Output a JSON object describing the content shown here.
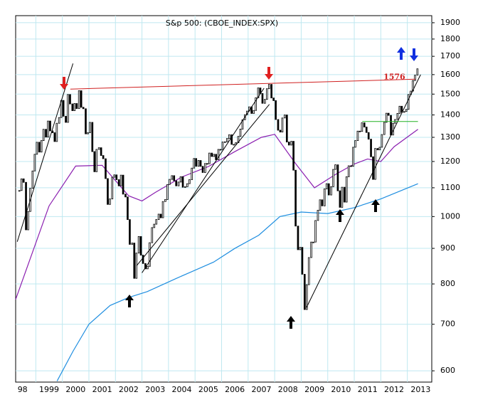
{
  "chart_data": {
    "type": "candlestick",
    "title": "S&p 500: (CBOE_INDEX:SPX)",
    "log_scale": true,
    "grid": true,
    "xlim": [
      1998.24,
      2013.92
    ],
    "ylim": [
      578,
      1945
    ],
    "xticks": [
      {
        "value": 1998,
        "label": "98"
      },
      1999,
      2000,
      2001,
      2002,
      2003,
      2004,
      2005,
      2006,
      2007,
      2008,
      2009,
      2010,
      2011,
      2012,
      2013
    ],
    "yticks": [
      600,
      700,
      800,
      900,
      1000,
      1100,
      1200,
      1300,
      1400,
      1500,
      1600,
      1700,
      1800,
      1900
    ],
    "up_color": "#ffffff",
    "down_color": "#000000",
    "x": [
      1998.38,
      1998.46,
      1998.54,
      1998.63,
      1998.71,
      1998.79,
      1998.88,
      1998.96,
      1999.04,
      1999.13,
      1999.21,
      1999.29,
      1999.38,
      1999.46,
      1999.54,
      1999.63,
      1999.71,
      1999.79,
      1999.88,
      1999.96,
      2000.04,
      2000.13,
      2000.21,
      2000.29,
      2000.38,
      2000.46,
      2000.54,
      2000.63,
      2000.71,
      2000.79,
      2000.88,
      2000.96,
      2001.04,
      2001.13,
      2001.21,
      2001.29,
      2001.38,
      2001.46,
      2001.54,
      2001.63,
      2001.71,
      2001.79,
      2001.88,
      2001.96,
      2002.04,
      2002.13,
      2002.21,
      2002.29,
      2002.38,
      2002.46,
      2002.54,
      2002.63,
      2002.71,
      2002.79,
      2002.88,
      2002.96,
      2003.04,
      2003.13,
      2003.21,
      2003.29,
      2003.38,
      2003.46,
      2003.54,
      2003.63,
      2003.71,
      2003.79,
      2003.88,
      2003.96,
      2004.04,
      2004.13,
      2004.21,
      2004.29,
      2004.38,
      2004.46,
      2004.54,
      2004.63,
      2004.71,
      2004.79,
      2004.88,
      2004.96,
      2005.04,
      2005.13,
      2005.21,
      2005.29,
      2005.38,
      2005.46,
      2005.54,
      2005.63,
      2005.71,
      2005.79,
      2005.88,
      2005.96,
      2006.04,
      2006.13,
      2006.21,
      2006.29,
      2006.38,
      2006.46,
      2006.54,
      2006.63,
      2006.71,
      2006.79,
      2006.88,
      2006.96,
      2007.04,
      2007.13,
      2007.21,
      2007.29,
      2007.38,
      2007.46,
      2007.54,
      2007.63,
      2007.71,
      2007.79,
      2007.88,
      2007.96,
      2008.04,
      2008.13,
      2008.21,
      2008.29,
      2008.38,
      2008.46,
      2008.54,
      2008.63,
      2008.71,
      2008.79,
      2008.88,
      2008.96,
      2009.04,
      2009.13,
      2009.21,
      2009.29,
      2009.38,
      2009.46,
      2009.54,
      2009.63,
      2009.71,
      2009.79,
      2009.88,
      2009.96,
      2010.04,
      2010.13,
      2010.21,
      2010.29,
      2010.38,
      2010.46,
      2010.54,
      2010.63,
      2010.71,
      2010.79,
      2010.88,
      2010.96,
      2011.04,
      2011.13,
      2011.21,
      2011.29,
      2011.38,
      2011.46,
      2011.54,
      2011.63,
      2011.71,
      2011.79,
      2011.88,
      2011.96,
      2012.04,
      2012.13,
      2012.21,
      2012.29,
      2012.38,
      2012.46,
      2012.54,
      2012.63,
      2012.71,
      2012.79,
      2012.88,
      2012.96,
      2013.04,
      2013.13,
      2013.21,
      2013.29,
      2013.38
    ],
    "close": [
      1090,
      1133,
      1120,
      957,
      1017,
      1098,
      1163,
      1229,
      1279,
      1238,
      1286,
      1335,
      1301,
      1372,
      1328,
      1320,
      1282,
      1362,
      1388,
      1469,
      1394,
      1366,
      1498,
      1452,
      1420,
      1454,
      1430,
      1517,
      1436,
      1429,
      1315,
      1320,
      1366,
      1240,
      1160,
      1249,
      1256,
      1224,
      1211,
      1134,
      1041,
      1060,
      1139,
      1148,
      1130,
      1107,
      1147,
      1077,
      1067,
      990,
      912,
      916,
      815,
      886,
      936,
      880,
      856,
      841,
      848,
      917,
      964,
      975,
      990,
      1008,
      996,
      1051,
      1058,
      1112,
      1131,
      1145,
      1126,
      1107,
      1121,
      1141,
      1102,
      1104,
      1115,
      1130,
      1174,
      1212,
      1181,
      1204,
      1181,
      1157,
      1192,
      1191,
      1234,
      1220,
      1229,
      1207,
      1249,
      1248,
      1280,
      1281,
      1295,
      1311,
      1270,
      1270,
      1277,
      1304,
      1336,
      1378,
      1401,
      1418,
      1438,
      1407,
      1421,
      1482,
      1531,
      1503,
      1455,
      1474,
      1527,
      1549,
      1481,
      1468,
      1379,
      1331,
      1323,
      1386,
      1400,
      1280,
      1267,
      1283,
      1166,
      969,
      896,
      903,
      826,
      735,
      798,
      873,
      919,
      919,
      987,
      1021,
      1057,
      1036,
      1096,
      1115,
      1074,
      1104,
      1169,
      1187,
      1089,
      1031,
      1102,
      1049,
      1141,
      1183,
      1181,
      1258,
      1286,
      1327,
      1326,
      1364,
      1345,
      1321,
      1292,
      1219,
      1131,
      1253,
      1247,
      1258,
      1312,
      1366,
      1408,
      1398,
      1310,
      1362,
      1379,
      1407,
      1441,
      1412,
      1416,
      1426,
      1498,
      1515,
      1569,
      1597,
      1631
    ],
    "series": [
      {
        "color": "#8b1fb0",
        "x": [
          1998.24,
          1999.5,
          2000.5,
          2001.5,
          2002.5,
          2003.0,
          2003.5,
          2004.5,
          2005.5,
          2006.5,
          2007.5,
          2008.0,
          2008.8,
          2009.5,
          2010.3,
          2011.0,
          2011.5,
          2012.0,
          2012.5,
          2013.4
        ],
        "values": [
          760,
          1036,
          1182,
          1185,
          1071,
          1053,
          1083,
          1140,
          1180,
          1240,
          1300,
          1313,
          1190,
          1100,
          1150,
          1190,
          1210,
          1200,
          1260,
          1335
        ]
      },
      {
        "color": "#1f8ee0",
        "x": [
          1999.8,
          2000.4,
          2001.0,
          2001.8,
          2002.5,
          2003.2,
          2004.3,
          2005.7,
          2006.5,
          2007.4,
          2008.2,
          2009.0,
          2010.0,
          2011.0,
          2012.0,
          2013.4
        ],
        "values": [
          580,
          640,
          700,
          745,
          765,
          780,
          815,
          860,
          900,
          940,
          1000,
          1015,
          1010,
          1030,
          1060,
          1115
        ]
      }
    ],
    "lines": [
      {
        "color": "#000000",
        "x": [
          1998.3,
          2000.4
        ],
        "y": [
          920,
          1660
        ]
      },
      {
        "color": "#000000",
        "x": [
          2003.0,
          2007.6
        ],
        "y": [
          830,
          1530
        ]
      },
      {
        "color": "#000000",
        "x": [
          2002.8,
          2007.8
        ],
        "y": [
          850,
          1450
        ]
      },
      {
        "color": "#000000",
        "x": [
          2009.2,
          2013.5
        ],
        "y": [
          740,
          1600
        ]
      },
      {
        "color": "#22b022",
        "x": [
          2011.3,
          2013.4
        ],
        "y": [
          1370,
          1370
        ]
      },
      {
        "color": "#d02020",
        "x": [
          2000.3,
          2013.3
        ],
        "y": [
          1525,
          1576
        ]
      }
    ],
    "annotation": {
      "text": "1576",
      "x": 2012.1,
      "y": 1576,
      "color": "#d02020"
    }
  }
}
